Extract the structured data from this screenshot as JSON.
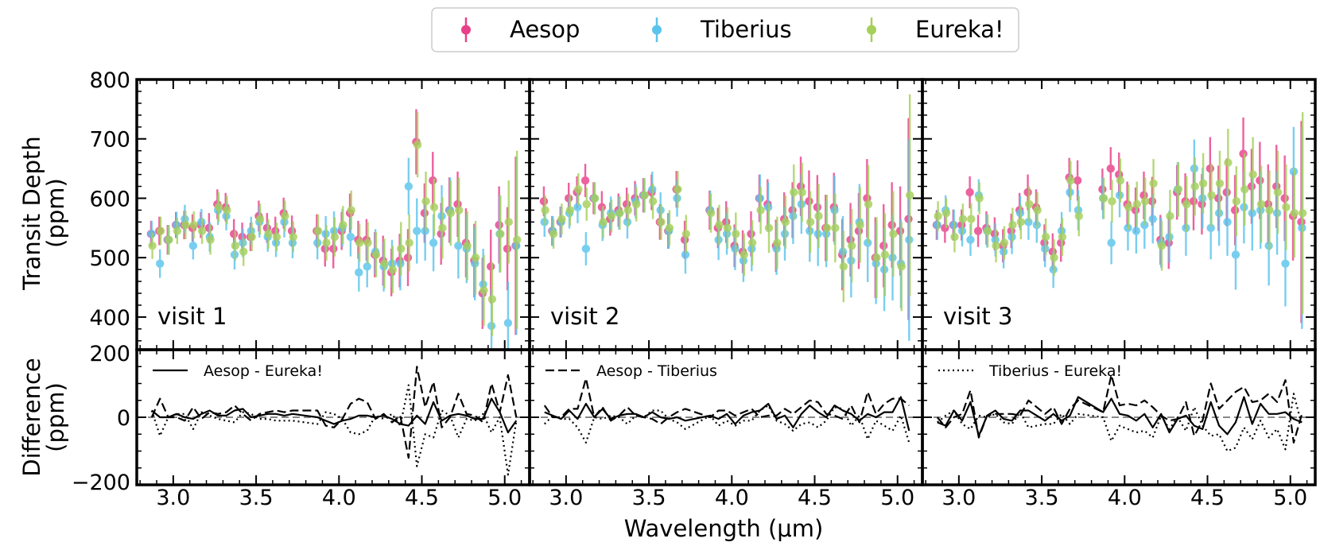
{
  "chart_data": {
    "type": "scatter",
    "subtype": "transit-spectra-with-errorbars-and-difference-panels",
    "xlabel": "Wavelength (μm)",
    "ylabel_top": [
      "Transit Depth",
      "(ppm)"
    ],
    "ylabel_bottom": [
      "Difference",
      "(ppm)"
    ],
    "xlim": [
      2.78,
      5.15
    ],
    "ylim_top": [
      345,
      800
    ],
    "ylim_bottom": [
      -200,
      200
    ],
    "x_ticks": [
      3.0,
      3.5,
      4.0,
      4.5,
      5.0
    ],
    "x_tick_labels": [
      "3.0",
      "3.5",
      "4.0",
      "4.5",
      "5.0"
    ],
    "y_ticks_top": [
      400,
      500,
      600,
      700,
      800
    ],
    "y_tick_labels_top": [
      "400",
      "500",
      "600",
      "700",
      "800"
    ],
    "y_ticks_bottom": [
      -200,
      0,
      200
    ],
    "y_tick_labels_bottom": [
      "−200",
      "0",
      "200"
    ],
    "legend": {
      "placement": "top-center",
      "entries": [
        {
          "name": "Aesop",
          "color": "#e8408a"
        },
        {
          "name": "Tiberius",
          "color": "#5bc4ec"
        },
        {
          "name": "Eureka!",
          "color": "#a6d05a"
        }
      ]
    },
    "difference_legend": [
      {
        "name": "Aesop - Eureka!",
        "style": "solid"
      },
      {
        "name": "Aesop - Tiberius",
        "style": "dashed"
      },
      {
        "name": "Tiberius - Eureka!",
        "style": "dotted"
      }
    ],
    "zero_line": {
      "y": 0,
      "style": "dashed",
      "color": "#888888"
    },
    "visits": [
      {
        "label": "visit 1",
        "x": [
          2.87,
          2.92,
          2.97,
          3.02,
          3.07,
          3.12,
          3.17,
          3.22,
          3.27,
          3.32,
          3.37,
          3.42,
          3.47,
          3.52,
          3.57,
          3.62,
          3.67,
          3.72,
          3.87,
          3.92,
          3.97,
          4.02,
          4.07,
          4.12,
          4.17,
          4.22,
          4.27,
          4.32,
          4.37,
          4.42,
          4.47,
          4.52,
          4.57,
          4.62,
          4.67,
          4.72,
          4.77,
          4.82,
          4.87,
          4.92,
          4.97,
          5.02,
          5.07
        ],
        "aesop": [
          540,
          545,
          530,
          555,
          555,
          550,
          555,
          550,
          590,
          585,
          540,
          535,
          535,
          570,
          550,
          545,
          575,
          545,
          545,
          515,
          515,
          545,
          575,
          530,
          530,
          505,
          495,
          475,
          495,
          500,
          695,
          575,
          630,
          540,
          580,
          590,
          525,
          495,
          440,
          485,
          555,
          515,
          520
        ],
        "tiberius": [
          540,
          490,
          530,
          555,
          565,
          520,
          560,
          535,
          580,
          570,
          505,
          525,
          545,
          560,
          535,
          525,
          560,
          525,
          525,
          540,
          545,
          550,
          535,
          475,
          485,
          510,
          485,
          490,
          490,
          620,
          545,
          545,
          525,
          570,
          580,
          520,
          515,
          490,
          455,
          385,
          540,
          390,
          520
        ],
        "eureka": [
          520,
          545,
          530,
          545,
          555,
          555,
          545,
          530,
          585,
          580,
          520,
          510,
          535,
          565,
          540,
          535,
          570,
          535,
          545,
          525,
          535,
          555,
          580,
          525,
          525,
          505,
          490,
          480,
          515,
          525,
          690,
          595,
          585,
          550,
          575,
          580,
          520,
          500,
          445,
          430,
          540,
          560,
          530
        ],
        "err": [
          22,
          24,
          25,
          22,
          24,
          23,
          22,
          25,
          25,
          24,
          25,
          24,
          24,
          26,
          25,
          24,
          26,
          26,
          28,
          30,
          33,
          32,
          33,
          32,
          35,
          38,
          42,
          40,
          45,
          48,
          55,
          50,
          48,
          52,
          55,
          55,
          58,
          62,
          60,
          62,
          65,
          70,
          150
        ]
      },
      {
        "label": "visit 2",
        "x": [
          2.87,
          2.92,
          2.97,
          3.02,
          3.07,
          3.12,
          3.17,
          3.22,
          3.27,
          3.32,
          3.37,
          3.42,
          3.47,
          3.52,
          3.57,
          3.62,
          3.67,
          3.72,
          3.87,
          3.92,
          3.97,
          4.02,
          4.07,
          4.12,
          4.17,
          4.22,
          4.27,
          4.32,
          4.37,
          4.42,
          4.47,
          4.52,
          4.57,
          4.62,
          4.67,
          4.72,
          4.77,
          4.82,
          4.87,
          4.92,
          4.97,
          5.02,
          5.07
        ],
        "aesop": [
          595,
          545,
          560,
          600,
          610,
          630,
          600,
          585,
          565,
          580,
          590,
          600,
          605,
          610,
          560,
          545,
          615,
          530,
          580,
          550,
          560,
          520,
          510,
          540,
          600,
          590,
          520,
          565,
          580,
          620,
          595,
          585,
          550,
          585,
          505,
          530,
          545,
          600,
          500,
          520,
          555,
          545,
          565
        ],
        "tiberius": [
          560,
          545,
          560,
          575,
          585,
          515,
          600,
          555,
          575,
          575,
          560,
          595,
          605,
          615,
          580,
          545,
          600,
          505,
          580,
          530,
          540,
          515,
          495,
          515,
          600,
          585,
          515,
          540,
          570,
          590,
          545,
          540,
          540,
          580,
          510,
          495,
          560,
          525,
          490,
          480,
          500,
          490,
          530
        ],
        "eureka": [
          580,
          540,
          565,
          580,
          615,
          590,
          600,
          560,
          570,
          575,
          580,
          590,
          605,
          595,
          560,
          550,
          615,
          540,
          575,
          555,
          550,
          540,
          505,
          525,
          580,
          550,
          525,
          560,
          610,
          610,
          560,
          570,
          550,
          550,
          485,
          520,
          555,
          590,
          500,
          505,
          540,
          485,
          605
        ],
        "err": [
          25,
          25,
          26,
          26,
          27,
          28,
          27,
          27,
          28,
          28,
          28,
          29,
          29,
          30,
          30,
          30,
          31,
          32,
          33,
          34,
          35,
          36,
          36,
          38,
          40,
          42,
          44,
          45,
          47,
          50,
          52,
          54,
          56,
          58,
          60,
          62,
          64,
          66,
          68,
          70,
          72,
          75,
          170
        ]
      },
      {
        "label": "visit 3",
        "x": [
          2.87,
          2.92,
          2.97,
          3.02,
          3.07,
          3.12,
          3.17,
          3.22,
          3.27,
          3.32,
          3.37,
          3.42,
          3.47,
          3.52,
          3.57,
          3.62,
          3.67,
          3.72,
          3.87,
          3.92,
          3.97,
          4.02,
          4.07,
          4.12,
          4.17,
          4.22,
          4.27,
          4.32,
          4.37,
          4.42,
          4.47,
          4.52,
          4.57,
          4.62,
          4.67,
          4.72,
          4.77,
          4.82,
          4.87,
          4.92,
          4.97,
          5.02,
          5.07
        ],
        "aesop": [
          555,
          550,
          555,
          555,
          610,
          545,
          550,
          540,
          520,
          545,
          580,
          610,
          585,
          525,
          510,
          525,
          635,
          630,
          615,
          650,
          640,
          590,
          580,
          605,
          595,
          530,
          525,
          610,
          595,
          595,
          590,
          650,
          600,
          610,
          580,
          675,
          620,
          630,
          590,
          620,
          600,
          570,
          560
        ],
        "tiberius": [
          555,
          580,
          555,
          545,
          530,
          605,
          545,
          530,
          510,
          535,
          575,
          560,
          555,
          515,
          480,
          545,
          610,
          580,
          600,
          525,
          605,
          550,
          545,
          555,
          565,
          525,
          535,
          615,
          550,
          650,
          600,
          550,
          575,
          560,
          505,
          585,
          575,
          580,
          520,
          575,
          490,
          645,
          550
        ],
        "eureka": [
          570,
          575,
          535,
          565,
          565,
          600,
          545,
          520,
          525,
          555,
          560,
          590,
          580,
          535,
          500,
          535,
          630,
          570,
          600,
          595,
          630,
          585,
          590,
          595,
          625,
          520,
          570,
          615,
          590,
          620,
          625,
          605,
          625,
          660,
          595,
          615,
          640,
          590,
          580,
          610,
          585,
          575,
          575
        ],
        "err": [
          25,
          25,
          26,
          26,
          27,
          27,
          28,
          28,
          28,
          29,
          29,
          30,
          30,
          31,
          31,
          32,
          33,
          34,
          35,
          36,
          37,
          38,
          38,
          40,
          41,
          42,
          44,
          46,
          47,
          49,
          51,
          53,
          55,
          57,
          59,
          61,
          63,
          65,
          67,
          70,
          72,
          75,
          170
        ]
      }
    ]
  }
}
